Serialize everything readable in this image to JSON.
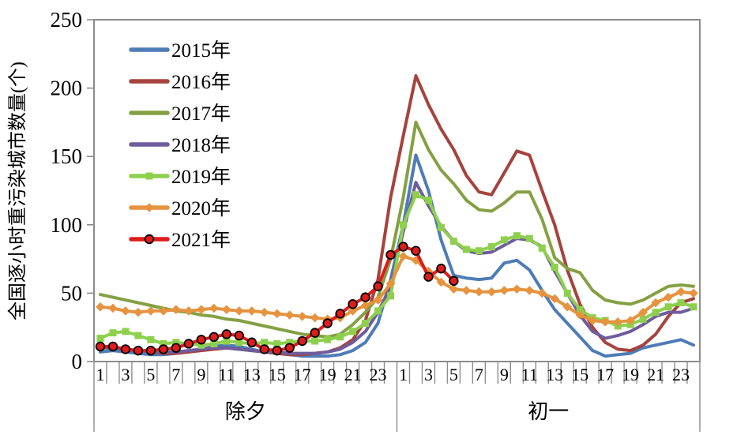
{
  "figure": {
    "background": "#ffffff",
    "axis_color": "#8c8c8c",
    "text_color": "#000000"
  },
  "chart_data": {
    "type": "line",
    "title": "",
    "xlabel": "",
    "ylabel": "全国逐小时重污染城市数量(个)",
    "ylim": [
      0,
      250
    ],
    "yticks": [
      0,
      50,
      100,
      150,
      200,
      250
    ],
    "grid": false,
    "legend_position": "upper-left",
    "x_groups": [
      {
        "label": "除夕",
        "hours": 24
      },
      {
        "label": "初一",
        "hours": 24
      }
    ],
    "x_tick_labels_per_group": [
      1,
      3,
      5,
      7,
      9,
      11,
      13,
      15,
      17,
      19,
      21,
      23
    ],
    "series": [
      {
        "name": "2015年",
        "color": "#4E7CB5",
        "marker": "none",
        "values": [
          7,
          8,
          7,
          6,
          5,
          5,
          6,
          7,
          9,
          11,
          12,
          11,
          9,
          7,
          6,
          5,
          4,
          4,
          4,
          5,
          8,
          14,
          28,
          60,
          100,
          151,
          125,
          89,
          63,
          61,
          60,
          61,
          72,
          74,
          67,
          52,
          38,
          28,
          18,
          8,
          4,
          5,
          6,
          10,
          12,
          14,
          16,
          12
        ]
      },
      {
        "name": "2016年",
        "color": "#A5433C",
        "marker": "none",
        "values": [
          10,
          10,
          9,
          8,
          7,
          6,
          6,
          7,
          8,
          9,
          10,
          9,
          8,
          7,
          6,
          5,
          5,
          6,
          7,
          10,
          16,
          30,
          60,
          120,
          165,
          209,
          188,
          170,
          155,
          136,
          124,
          122,
          138,
          154,
          151,
          125,
          100,
          67,
          42,
          25,
          14,
          9,
          8,
          12,
          20,
          33,
          43,
          46
        ]
      },
      {
        "name": "2017年",
        "color": "#85A043",
        "marker": "none",
        "values": [
          49,
          47,
          45,
          43,
          41,
          39,
          37,
          36,
          34,
          33,
          31,
          30,
          28,
          26,
          24,
          22,
          20,
          19,
          18,
          20,
          27,
          36,
          47,
          75,
          120,
          175,
          155,
          140,
          130,
          118,
          111,
          110,
          116,
          124,
          124,
          104,
          76,
          68,
          65,
          52,
          45,
          43,
          42,
          45,
          50,
          55,
          56,
          55
        ]
      },
      {
        "name": "2018年",
        "color": "#6F5C9D",
        "marker": "none",
        "values": [
          11,
          10,
          9,
          8,
          7,
          7,
          7,
          8,
          9,
          10,
          10,
          9,
          8,
          7,
          7,
          6,
          6,
          6,
          7,
          9,
          14,
          22,
          36,
          55,
          95,
          131,
          114,
          99,
          88,
          81,
          79,
          80,
          85,
          90,
          89,
          84,
          66,
          50,
          34,
          22,
          17,
          19,
          22,
          27,
          33,
          36,
          36,
          39
        ]
      },
      {
        "name": "2019年",
        "color": "#8ED04E",
        "marker": "square",
        "values": [
          17,
          21,
          22,
          19,
          16,
          13,
          14,
          13,
          12,
          13,
          15,
          14,
          13,
          14,
          13,
          14,
          15,
          15,
          16,
          18,
          22,
          28,
          37,
          48,
          100,
          122,
          118,
          98,
          88,
          82,
          81,
          84,
          89,
          92,
          90,
          83,
          69,
          50,
          38,
          32,
          30,
          26,
          27,
          31,
          36,
          40,
          43,
          40
        ]
      },
      {
        "name": "2020年",
        "color": "#E6933F",
        "marker": "diamond",
        "values": [
          40,
          39,
          37,
          36,
          37,
          37,
          38,
          37,
          38,
          39,
          38,
          37,
          37,
          36,
          35,
          34,
          33,
          32,
          31,
          32,
          37,
          41,
          45,
          57,
          77,
          74,
          66,
          58,
          53,
          52,
          51,
          51,
          52,
          53,
          52,
          50,
          46,
          40,
          34,
          30,
          29,
          29,
          30,
          36,
          43,
          47,
          51,
          50
        ]
      },
      {
        "name": "2021年",
        "color": "#DE1C1C",
        "marker": "circle",
        "marker_edge": "#000000",
        "values": [
          11,
          11,
          9,
          8,
          8,
          9,
          10,
          13,
          16,
          18,
          20,
          19,
          14,
          9,
          8,
          10,
          15,
          21,
          28,
          35,
          42,
          47,
          55,
          78,
          84,
          81,
          62,
          68,
          59
        ]
      }
    ]
  }
}
